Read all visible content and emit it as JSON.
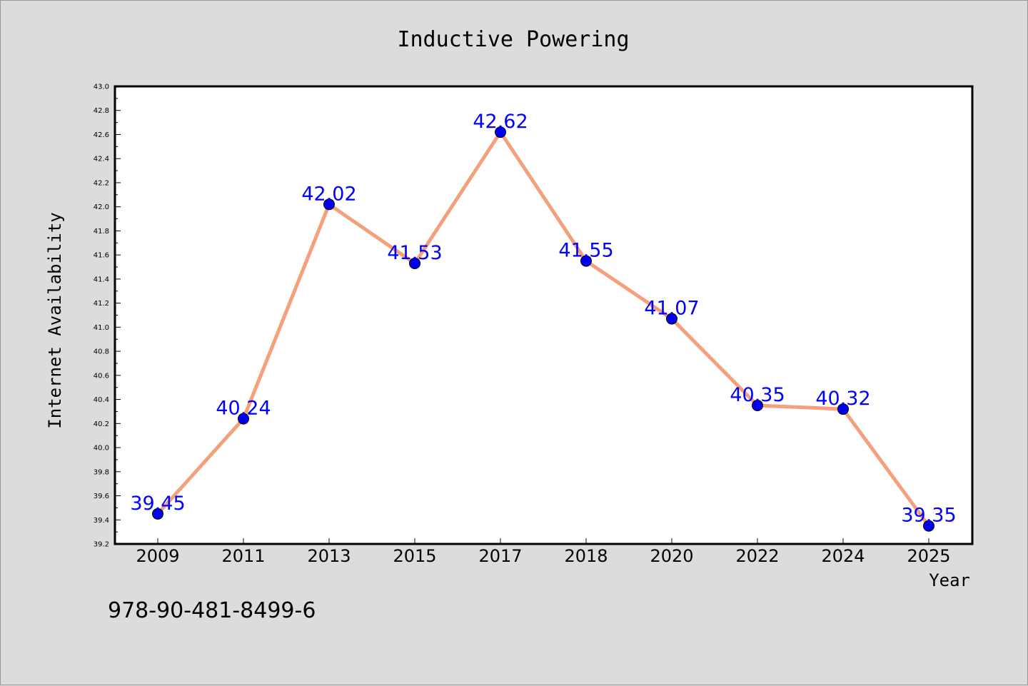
{
  "chart_data": {
    "type": "line",
    "title": "Inductive Powering",
    "xlabel": "Year",
    "ylabel": "Internet Availability",
    "categories": [
      "2009",
      "2011",
      "2013",
      "2015",
      "2017",
      "2018",
      "2020",
      "2022",
      "2024",
      "2025"
    ],
    "series": [
      {
        "values": [
          39.45,
          40.24,
          42.02,
          41.53,
          42.62,
          41.55,
          41.07,
          40.35,
          40.32,
          39.35
        ]
      }
    ],
    "data_labels": [
      "39.45",
      "40.24",
      "42.02",
      "41.53",
      "42.62",
      "41.55",
      "41.07",
      "40.35",
      "40.32",
      "39.35"
    ],
    "ylim": [
      39.2,
      43.0
    ],
    "yticks": [
      "39.2",
      "39.4",
      "39.6",
      "39.8",
      "40.0",
      "40.2",
      "40.4",
      "40.6",
      "40.8",
      "41.0",
      "41.2",
      "41.4",
      "41.6",
      "41.8",
      "42.0",
      "42.2",
      "42.4",
      "42.6",
      "42.8",
      "43.0"
    ],
    "grid": false,
    "line_color": "#f4a07c",
    "marker_color": "#0000ee",
    "label_color": "#0000ff"
  },
  "footer": {
    "code": "978-90-481-8499-6"
  }
}
